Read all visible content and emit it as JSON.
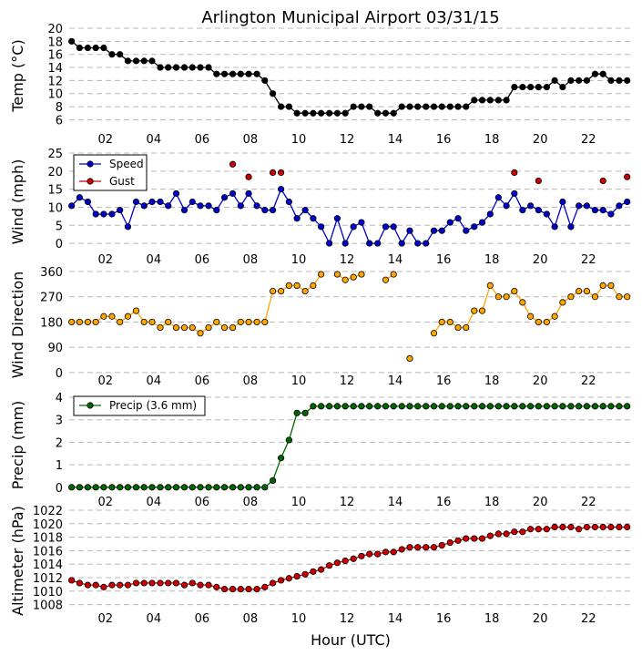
{
  "chart_data": {
    "type": "line",
    "title": "Arlington Municipal Airport 03/31/15",
    "xlabel": "Hour (UTC)",
    "xlim": [
      0.5,
      23.8
    ],
    "x_ticks": [
      2,
      4,
      6,
      8,
      10,
      12,
      14,
      16,
      18,
      20,
      22
    ],
    "x_tick_labels": [
      "02",
      "04",
      "06",
      "08",
      "10",
      "12",
      "14",
      "16",
      "18",
      "20",
      "22"
    ],
    "grid": true,
    "panels": [
      {
        "id": "temp",
        "ylabel": "Temp (°C)",
        "ylim": [
          5.5,
          20
        ],
        "yticks": [
          6,
          8,
          10,
          12,
          14,
          16,
          18,
          20
        ],
        "series": [
          {
            "color": "#000000",
            "x": [
              0.6,
              0.93,
              1.27,
              1.6,
              1.93,
              2.27,
              2.6,
              2.93,
              3.27,
              3.6,
              3.93,
              4.27,
              4.6,
              4.93,
              5.27,
              5.6,
              5.93,
              6.27,
              6.6,
              6.93,
              7.27,
              7.6,
              7.93,
              8.27,
              8.6,
              8.93,
              9.27,
              9.6,
              9.93,
              10.27,
              10.6,
              10.93,
              11.27,
              11.6,
              11.93,
              12.27,
              12.6,
              12.93,
              13.27,
              13.6,
              13.93,
              14.27,
              14.6,
              14.93,
              15.27,
              15.6,
              15.93,
              16.27,
              16.6,
              16.93,
              17.27,
              17.6,
              17.93,
              18.27,
              18.6,
              18.93,
              19.27,
              19.6,
              19.93,
              20.27,
              20.6,
              20.93,
              21.27,
              21.6,
              21.93,
              22.27,
              22.6,
              22.93,
              23.27,
              23.6
            ],
            "y": [
              18,
              17,
              17,
              17,
              17,
              16,
              16,
              15,
              15,
              15,
              15,
              14,
              14,
              14,
              14,
              14,
              14,
              14,
              13,
              13,
              13,
              13,
              13,
              13,
              12,
              10,
              8,
              8,
              7,
              7,
              7,
              7,
              7,
              7,
              7,
              8,
              8,
              8,
              7,
              7,
              7,
              8,
              8,
              8,
              8,
              8,
              8,
              8,
              8,
              8,
              9,
              9,
              9,
              9,
              9,
              11,
              11,
              11,
              11,
              11,
              12,
              11,
              12,
              12,
              12,
              13,
              13,
              12,
              12,
              12
            ]
          }
        ]
      },
      {
        "id": "wind",
        "ylabel": "Wind (mph)",
        "ylim": [
          -2,
          25
        ],
        "yticks": [
          0,
          5,
          10,
          15,
          20,
          25
        ],
        "legend": "top-left",
        "series": [
          {
            "name": "Speed",
            "color": "#0000cc",
            "x": [
              0.6,
              0.93,
              1.27,
              1.6,
              1.93,
              2.27,
              2.6,
              2.93,
              3.27,
              3.6,
              3.93,
              4.27,
              4.6,
              4.93,
              5.27,
              5.6,
              5.93,
              6.27,
              6.6,
              6.93,
              7.27,
              7.6,
              7.93,
              8.27,
              8.6,
              8.93,
              9.27,
              9.6,
              9.93,
              10.27,
              10.6,
              10.93,
              11.27,
              11.6,
              11.93,
              12.27,
              12.6,
              12.93,
              13.27,
              13.6,
              13.93,
              14.27,
              14.6,
              14.93,
              15.27,
              15.6,
              15.93,
              16.27,
              16.6,
              16.93,
              17.27,
              17.6,
              17.93,
              18.27,
              18.6,
              18.93,
              19.27,
              19.6,
              19.93,
              20.27,
              20.6,
              20.93,
              21.27,
              21.6,
              21.93,
              22.27,
              22.6,
              22.93,
              23.27,
              23.6
            ],
            "y": [
              10.4,
              12.7,
              11.5,
              8.1,
              8.1,
              8.1,
              9.2,
              4.6,
              11.5,
              10.4,
              11.5,
              11.5,
              10.4,
              13.8,
              9.2,
              11.5,
              10.4,
              10.4,
              9.2,
              12.7,
              13.8,
              10.4,
              13.8,
              10.4,
              9.2,
              9.2,
              15.0,
              11.5,
              6.9,
              9.2,
              6.9,
              4.6,
              0,
              6.9,
              0,
              4.6,
              5.8,
              0,
              0,
              4.6,
              4.6,
              0,
              3.5,
              0,
              0,
              3.5,
              3.5,
              5.8,
              6.9,
              3.5,
              4.6,
              5.8,
              8.1,
              12.7,
              10.4,
              13.8,
              9.2,
              10.4,
              9.2,
              8.1,
              4.6,
              11.5,
              4.6,
              10.4,
              10.4,
              9.2,
              9.2,
              8.1,
              10.4,
              11.5
            ]
          },
          {
            "name": "Gust",
            "color": "#cc0000",
            "marker_only": true,
            "x": [
              7.27,
              7.93,
              8.93,
              9.27,
              18.93,
              19.93,
              22.6,
              23.6
            ],
            "y": [
              21.9,
              18.4,
              19.6,
              19.6,
              19.6,
              17.3,
              17.3,
              18.4
            ]
          }
        ]
      },
      {
        "id": "dir",
        "ylabel": "Wind Direction",
        "ylim": [
          -20,
          360
        ],
        "yticks": [
          0,
          90,
          180,
          270,
          360
        ],
        "series": [
          {
            "color": "#ffa500",
            "x": [
              0.6,
              0.93,
              1.27,
              1.6,
              1.93,
              2.27,
              2.6,
              2.93,
              3.27,
              3.6,
              3.93,
              4.27,
              4.6,
              4.93,
              5.27,
              5.6,
              5.93,
              6.27,
              6.6,
              6.93,
              7.27,
              7.6,
              7.93,
              8.27,
              8.6,
              8.93,
              9.27,
              9.6,
              9.93,
              10.27,
              10.6,
              10.93,
              null,
              11.6,
              11.93,
              12.27,
              12.6,
              null,
              13.6,
              13.93,
              null,
              14.6,
              null,
              15.6,
              15.93,
              16.27,
              16.6,
              16.93,
              17.27,
              17.6,
              17.93,
              18.27,
              18.6,
              18.93,
              19.27,
              19.6,
              19.93,
              20.27,
              20.6,
              20.93,
              21.27,
              21.6,
              21.93,
              22.27,
              22.6,
              22.93,
              23.27,
              23.6
            ],
            "y": [
              180,
              180,
              180,
              180,
              200,
              200,
              180,
              200,
              220,
              180,
              180,
              160,
              180,
              160,
              160,
              160,
              140,
              160,
              180,
              160,
              160,
              180,
              180,
              180,
              180,
              290,
              290,
              310,
              310,
              290,
              310,
              350,
              null,
              350,
              330,
              340,
              350,
              null,
              330,
              350,
              null,
              50,
              null,
              140,
              180,
              180,
              160,
              160,
              220,
              220,
              310,
              270,
              270,
              290,
              250,
              200,
              180,
              180,
              200,
              250,
              270,
              290,
              290,
              270,
              310,
              310,
              270,
              270
            ]
          }
        ]
      },
      {
        "id": "precip",
        "ylabel": "Precip (mm)",
        "ylim": [
          -0.25,
          4
        ],
        "yticks": [
          0,
          1,
          2,
          3,
          4
        ],
        "legend": "top-left",
        "series": [
          {
            "name": "Precip (3.6 mm)",
            "color": "#006400",
            "x": [
              0.6,
              0.93,
              1.27,
              1.6,
              1.93,
              2.27,
              2.6,
              2.93,
              3.27,
              3.6,
              3.93,
              4.27,
              4.6,
              4.93,
              5.27,
              5.6,
              5.93,
              6.27,
              6.6,
              6.93,
              7.27,
              7.6,
              7.93,
              8.27,
              8.6,
              8.93,
              9.27,
              9.6,
              9.93,
              10.27,
              10.6,
              10.93,
              11.27,
              11.6,
              11.93,
              12.27,
              12.6,
              12.93,
              13.27,
              13.6,
              13.93,
              14.27,
              14.6,
              14.93,
              15.27,
              15.6,
              15.93,
              16.27,
              16.6,
              16.93,
              17.27,
              17.6,
              17.93,
              18.27,
              18.6,
              18.93,
              19.27,
              19.6,
              19.93,
              20.27,
              20.6,
              20.93,
              21.27,
              21.6,
              21.93,
              22.27,
              22.6,
              22.93,
              23.27,
              23.6
            ],
            "y": [
              0,
              0,
              0,
              0,
              0,
              0,
              0,
              0,
              0,
              0,
              0,
              0,
              0,
              0,
              0,
              0,
              0,
              0,
              0,
              0,
              0,
              0,
              0,
              0,
              0,
              0.3,
              1.3,
              2.1,
              3.3,
              3.3,
              3.6,
              3.6,
              3.6,
              3.6,
              3.6,
              3.6,
              3.6,
              3.6,
              3.6,
              3.6,
              3.6,
              3.6,
              3.6,
              3.6,
              3.6,
              3.6,
              3.6,
              3.6,
              3.6,
              3.6,
              3.6,
              3.6,
              3.6,
              3.6,
              3.6,
              3.6,
              3.6,
              3.6,
              3.6,
              3.6,
              3.6,
              3.6,
              3.6,
              3.6,
              3.6,
              3.6,
              3.6,
              3.6,
              3.6,
              3.6
            ]
          }
        ]
      },
      {
        "id": "alti",
        "ylabel": "Altimeter (hPa)",
        "ylim": [
          1007,
          1022
        ],
        "yticks": [
          1008,
          1010,
          1012,
          1014,
          1016,
          1018,
          1020,
          1022
        ],
        "series": [
          {
            "color": "#cc0000",
            "x": [
              0.6,
              0.93,
              1.27,
              1.6,
              1.93,
              2.27,
              2.6,
              2.93,
              3.27,
              3.6,
              3.93,
              4.27,
              4.6,
              4.93,
              5.27,
              5.6,
              5.93,
              6.27,
              6.6,
              6.93,
              7.27,
              7.6,
              7.93,
              8.27,
              8.6,
              8.93,
              9.27,
              9.6,
              9.93,
              10.27,
              10.6,
              10.93,
              11.27,
              11.6,
              11.93,
              12.27,
              12.6,
              12.93,
              13.27,
              13.6,
              13.93,
              14.27,
              14.6,
              14.93,
              15.27,
              15.6,
              15.93,
              16.27,
              16.6,
              16.93,
              17.27,
              17.6,
              17.93,
              18.27,
              18.6,
              18.93,
              19.27,
              19.6,
              19.93,
              20.27,
              20.6,
              20.93,
              21.27,
              21.6,
              21.93,
              22.27,
              22.6,
              22.93,
              23.27,
              23.6
            ],
            "y": [
              1011.6,
              1011.2,
              1010.9,
              1010.9,
              1010.6,
              1010.9,
              1010.9,
              1010.9,
              1011.2,
              1011.2,
              1011.2,
              1011.2,
              1011.2,
              1011.2,
              1010.9,
              1011.2,
              1010.9,
              1010.9,
              1010.6,
              1010.3,
              1010.3,
              1010.3,
              1010.3,
              1010.3,
              1010.6,
              1011.2,
              1011.6,
              1011.9,
              1012.2,
              1012.5,
              1012.9,
              1013.2,
              1013.8,
              1014.2,
              1014.5,
              1014.8,
              1015.2,
              1015.5,
              1015.5,
              1015.8,
              1015.8,
              1016.2,
              1016.5,
              1016.5,
              1016.5,
              1016.5,
              1016.8,
              1017.2,
              1017.5,
              1017.8,
              1017.8,
              1017.8,
              1018.2,
              1018.5,
              1018.5,
              1018.8,
              1018.8,
              1019.2,
              1019.2,
              1019.2,
              1019.5,
              1019.5,
              1019.5,
              1019.2,
              1019.5,
              1019.5,
              1019.5,
              1019.5,
              1019.5,
              1019.5
            ]
          }
        ]
      }
    ]
  }
}
